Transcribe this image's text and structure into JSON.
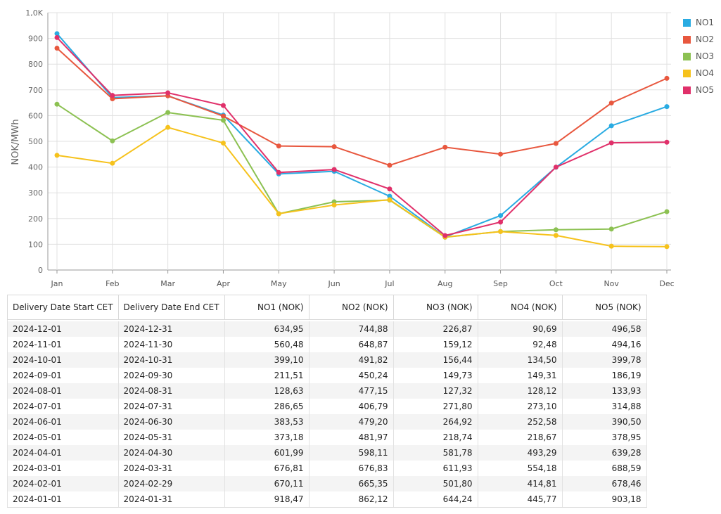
{
  "chart_data": {
    "type": "line",
    "title": "",
    "xlabel": "",
    "ylabel": "NOK/MWh",
    "ylim": [
      0,
      1000
    ],
    "yticks": [
      "0",
      "100",
      "200",
      "300",
      "400",
      "500",
      "600",
      "700",
      "800",
      "900",
      "1,0K"
    ],
    "grid": true,
    "legend_position": "right",
    "categories": [
      "Jan",
      "Feb",
      "Mar",
      "Apr",
      "May",
      "Jun",
      "Jul",
      "Aug",
      "Sep",
      "Oct",
      "Nov",
      "Dec"
    ],
    "series": [
      {
        "name": "NO1",
        "color": "#29ABE2",
        "values": [
          918.47,
          670.11,
          676.81,
          601.99,
          373.18,
          383.53,
          286.65,
          128.63,
          211.51,
          399.1,
          560.48,
          634.95
        ]
      },
      {
        "name": "NO2",
        "color": "#E8573E",
        "values": [
          862.12,
          665.35,
          676.83,
          598.11,
          481.97,
          479.2,
          406.79,
          477.15,
          450.24,
          491.82,
          648.87,
          744.88
        ]
      },
      {
        "name": "NO3",
        "color": "#8CC152",
        "values": [
          644.24,
          501.8,
          611.93,
          581.78,
          218.74,
          264.92,
          271.8,
          127.32,
          149.73,
          156.44,
          159.12,
          226.87
        ]
      },
      {
        "name": "NO4",
        "color": "#F6C21C",
        "values": [
          445.77,
          414.81,
          554.18,
          493.29,
          218.67,
          252.58,
          273.1,
          128.12,
          149.31,
          134.5,
          92.48,
          90.69
        ]
      },
      {
        "name": "NO5",
        "color": "#E0306A",
        "values": [
          903.18,
          678.46,
          688.59,
          639.28,
          378.95,
          390.5,
          314.88,
          133.93,
          186.19,
          399.78,
          494.16,
          496.58
        ]
      }
    ]
  },
  "table": {
    "headers": [
      "Delivery Date Start CET",
      "Delivery Date End CET",
      "NO1 (NOK)",
      "NO2 (NOK)",
      "NO3 (NOK)",
      "NO4 (NOK)",
      "NO5 (NOK)"
    ],
    "rows": [
      [
        "2024-12-01",
        "2024-12-31",
        "634,95",
        "744,88",
        "226,87",
        "90,69",
        "496,58"
      ],
      [
        "2024-11-01",
        "2024-11-30",
        "560,48",
        "648,87",
        "159,12",
        "92,48",
        "494,16"
      ],
      [
        "2024-10-01",
        "2024-10-31",
        "399,10",
        "491,82",
        "156,44",
        "134,50",
        "399,78"
      ],
      [
        "2024-09-01",
        "2024-09-30",
        "211,51",
        "450,24",
        "149,73",
        "149,31",
        "186,19"
      ],
      [
        "2024-08-01",
        "2024-08-31",
        "128,63",
        "477,15",
        "127,32",
        "128,12",
        "133,93"
      ],
      [
        "2024-07-01",
        "2024-07-31",
        "286,65",
        "406,79",
        "271,80",
        "273,10",
        "314,88"
      ],
      [
        "2024-06-01",
        "2024-06-30",
        "383,53",
        "479,20",
        "264,92",
        "252,58",
        "390,50"
      ],
      [
        "2024-05-01",
        "2024-05-31",
        "373,18",
        "481,97",
        "218,74",
        "218,67",
        "378,95"
      ],
      [
        "2024-04-01",
        "2024-04-30",
        "601,99",
        "598,11",
        "581,78",
        "493,29",
        "639,28"
      ],
      [
        "2024-03-01",
        "2024-03-31",
        "676,81",
        "676,83",
        "611,93",
        "554,18",
        "688,59"
      ],
      [
        "2024-02-01",
        "2024-02-29",
        "670,11",
        "665,35",
        "501,80",
        "414,81",
        "678,46"
      ],
      [
        "2024-01-01",
        "2024-01-31",
        "918,47",
        "862,12",
        "644,24",
        "445,77",
        "903,18"
      ]
    ]
  }
}
